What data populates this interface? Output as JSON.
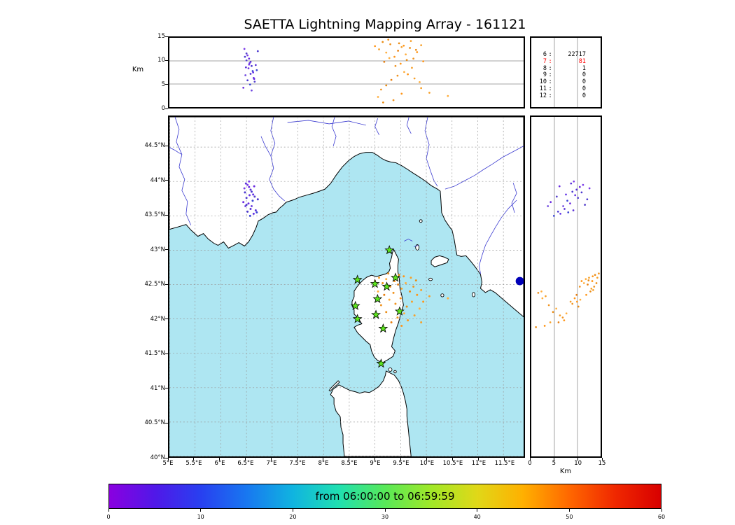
{
  "title": "SAETTA Lightning Mapping Array - 161121",
  "colorbar": {
    "label": "from 06:00:00 to 06:59:59",
    "ticks": [
      0,
      10,
      20,
      30,
      40,
      50,
      60
    ],
    "gradient": [
      "#8a00e0",
      "#5018e8",
      "#2840f0",
      "#1878f0",
      "#10b4e0",
      "#20e0b0",
      "#58e858",
      "#a0e828",
      "#e0d818",
      "#ffb000",
      "#ff6800",
      "#f02800",
      "#d80000"
    ]
  },
  "station_counts": {
    "rows": [
      {
        "n": "6",
        "count": "22717",
        "color": "#000000"
      },
      {
        "n": "7",
        "count": "81",
        "color": "#ff0000"
      },
      {
        "n": "8",
        "count": "1",
        "color": "#000000"
      },
      {
        "n": "9",
        "count": "0",
        "color": "#000000"
      },
      {
        "n": "10",
        "count": "0",
        "color": "#000000"
      },
      {
        "n": "11",
        "count": "0",
        "color": "#000000"
      },
      {
        "n": "12",
        "count": "0",
        "color": "#000000"
      }
    ]
  },
  "axes": {
    "alt_label": "Km",
    "right_alt_label": "Km",
    "alt_ticks": [
      0,
      5,
      10,
      15
    ],
    "lat_ticks": [
      40,
      40.5,
      41,
      41.5,
      42,
      42.5,
      43,
      43.5,
      44,
      44.5
    ],
    "lat_tick_labels": [
      "40°N",
      "40.5°N",
      "41°N",
      "41.5°N",
      "42°N",
      "42.5°N",
      "43°N",
      "43.5°N",
      "44°N",
      "44.5°N"
    ],
    "lon_ticks": [
      5,
      5.5,
      6,
      6.5,
      7,
      7.5,
      8,
      8.5,
      9,
      9.5,
      10,
      10.5,
      11,
      11.5
    ],
    "lon_tick_labels": [
      "5°E",
      "5.5°E",
      "6°E",
      "6.5°E",
      "7°E",
      "7.5°E",
      "8°E",
      "8.5°E",
      "9°E",
      "9.5°E",
      "10°E",
      "10.5°E",
      "11°E",
      "11.5°E"
    ]
  },
  "chart_data": {
    "type": "scatter",
    "title": "SAETTA Lightning Mapping Array - 161121",
    "time_range": "from 06:00:00 to 06:59:59",
    "extent": {
      "lon": [
        5,
        11.893
      ],
      "lat": [
        40,
        44.939
      ],
      "alt_km": [
        0,
        15
      ]
    },
    "panels": {
      "top": {
        "x": "longitude",
        "y": "altitude_km",
        "ylim": [
          0,
          15
        ],
        "grid_alt": [
          5,
          10
        ]
      },
      "map": {
        "x": "longitude",
        "y": "latitude",
        "grid": "0.5 degree dashed"
      },
      "right": {
        "x": "altitude_km",
        "y": "latitude",
        "xlim": [
          0,
          15
        ],
        "grid_alt": [
          5,
          10
        ]
      }
    },
    "station_count_histogram": [
      [
        "6",
        22717
      ],
      [
        "7",
        81
      ],
      [
        "8",
        1
      ],
      [
        "9",
        0
      ],
      [
        "10",
        0
      ],
      [
        "11",
        0
      ],
      [
        "12",
        0
      ]
    ],
    "stations": [
      [
        9.28,
        43.0
      ],
      [
        9.4,
        42.6
      ],
      [
        8.66,
        42.57
      ],
      [
        9.0,
        42.51
      ],
      [
        9.23,
        42.47
      ],
      [
        9.05,
        42.29
      ],
      [
        8.62,
        42.19
      ],
      [
        9.48,
        42.11
      ],
      [
        8.66,
        42.0
      ],
      [
        9.02,
        42.06
      ],
      [
        9.16,
        41.86
      ],
      [
        9.12,
        41.35
      ]
    ],
    "large_marker": {
      "lon": 11.82,
      "lat": 42.55,
      "color": "#0000b8"
    },
    "events": [
      [
        6.55,
        43.92,
        10.5,
        "#6a2be0"
      ],
      [
        6.58,
        43.88,
        9.8,
        "#5a30d8"
      ],
      [
        6.52,
        43.95,
        11.2,
        "#7a3ae8"
      ],
      [
        6.6,
        43.85,
        8.9,
        "#4b38d0"
      ],
      [
        6.56,
        43.8,
        9.5,
        "#6233e6"
      ],
      [
        6.5,
        43.76,
        10.1,
        "#5540cc"
      ],
      [
        6.62,
        43.72,
        7.8,
        "#3c44d4"
      ],
      [
        6.54,
        43.68,
        8.4,
        "#6a2be0"
      ],
      [
        6.48,
        43.64,
        6.9,
        "#7048e0"
      ],
      [
        6.58,
        43.6,
        7.2,
        "#5a30d8"
      ],
      [
        6.52,
        43.56,
        5.8,
        "#4b38d0"
      ],
      [
        6.64,
        43.53,
        6.3,
        "#6233e6"
      ],
      [
        6.57,
        43.5,
        4.9,
        "#3c44d4"
      ],
      [
        6.46,
        43.9,
        12.6,
        "#7a3ae8"
      ],
      [
        6.66,
        43.78,
        5.5,
        "#5540cc"
      ],
      [
        6.44,
        43.7,
        4.2,
        "#6a2be0"
      ],
      [
        6.6,
        43.64,
        3.6,
        "#7048e0"
      ],
      [
        6.68,
        43.58,
        9.1,
        "#5a30d8"
      ],
      [
        6.47,
        43.84,
        10.9,
        "#4b38d0"
      ],
      [
        6.63,
        43.81,
        7.5,
        "#6233e6"
      ],
      [
        6.7,
        43.55,
        8.0,
        "#3c44d4"
      ],
      [
        6.5,
        43.66,
        11.6,
        "#5540cc"
      ],
      [
        6.65,
        43.93,
        6.1,
        "#6a2be0"
      ],
      [
        6.55,
        44.0,
        9.2,
        "#7a3ae8"
      ],
      [
        6.49,
        43.97,
        8.6,
        "#5a30d8"
      ],
      [
        6.72,
        43.74,
        12.1,
        "#4b38d0"
      ],
      [
        9.0,
        42.55,
        13.2,
        "#ff9518"
      ],
      [
        9.08,
        42.6,
        12.5,
        "#f6a02a"
      ],
      [
        9.15,
        42.52,
        14.1,
        "#ea8c14"
      ],
      [
        9.22,
        42.58,
        11.8,
        "#ffae3e"
      ],
      [
        9.3,
        42.47,
        13.6,
        "#f09422"
      ],
      [
        9.38,
        42.55,
        10.9,
        "#ff9518"
      ],
      [
        9.45,
        42.5,
        12.2,
        "#e87f10"
      ],
      [
        9.52,
        42.44,
        13.0,
        "#f6a02a"
      ],
      [
        9.6,
        42.52,
        11.4,
        "#ffae3e"
      ],
      [
        9.68,
        42.4,
        12.8,
        "#ea8c14"
      ],
      [
        9.75,
        42.47,
        10.5,
        "#f09422"
      ],
      [
        9.82,
        42.35,
        11.9,
        "#ff9518"
      ],
      [
        9.9,
        42.42,
        13.4,
        "#f6a02a"
      ],
      [
        9.18,
        42.35,
        9.8,
        "#e87f10"
      ],
      [
        9.28,
        42.28,
        10.6,
        "#ffae3e"
      ],
      [
        9.4,
        42.22,
        8.9,
        "#f09422"
      ],
      [
        9.5,
        42.3,
        9.4,
        "#ff9518"
      ],
      [
        9.62,
        42.18,
        10.2,
        "#ea8c14"
      ],
      [
        9.72,
        42.25,
        8.5,
        "#f6a02a"
      ],
      [
        9.57,
        42.08,
        7.6,
        "#ffae3e"
      ],
      [
        9.44,
        42.02,
        6.8,
        "#f09422"
      ],
      [
        9.32,
        41.95,
        5.9,
        "#e87f10"
      ],
      [
        9.64,
        41.98,
        7.1,
        "#ff9518"
      ],
      [
        9.77,
        42.05,
        6.2,
        "#f6a02a"
      ],
      [
        9.87,
        42.15,
        5.4,
        "#ffae3e"
      ],
      [
        9.22,
        42.1,
        4.7,
        "#ea8c14"
      ],
      [
        9.12,
        42.2,
        3.8,
        "#f09422"
      ],
      [
        9.52,
        41.9,
        2.9,
        "#ff9518"
      ],
      [
        9.7,
        42.6,
        14.3,
        "#f6a02a"
      ],
      [
        9.47,
        42.64,
        13.8,
        "#ea8c14"
      ],
      [
        9.06,
        42.4,
        2.2,
        "#ffae3e"
      ],
      [
        9.36,
        42.38,
        1.5,
        "#f09422"
      ],
      [
        9.94,
        42.25,
        9.9,
        "#ff9518"
      ],
      [
        10.06,
        42.33,
        3.1,
        "#f6a02a"
      ],
      [
        10.42,
        42.3,
        2.4,
        "#ffae3e"
      ],
      [
        9.8,
        42.56,
        12.4,
        "#ea8c14"
      ],
      [
        9.26,
        42.66,
        14.6,
        "#f09422"
      ],
      [
        9.56,
        42.62,
        13.3,
        "#ff9518"
      ],
      [
        9.9,
        41.95,
        4.1,
        "#f6a02a"
      ],
      [
        9.16,
        41.88,
        1.0,
        "#ea8c14"
      ]
    ],
    "colors": {
      "sea": "#aee6f2",
      "land": "#ffffff",
      "river": "#3a3ad0",
      "station": "#5ce61e"
    }
  }
}
